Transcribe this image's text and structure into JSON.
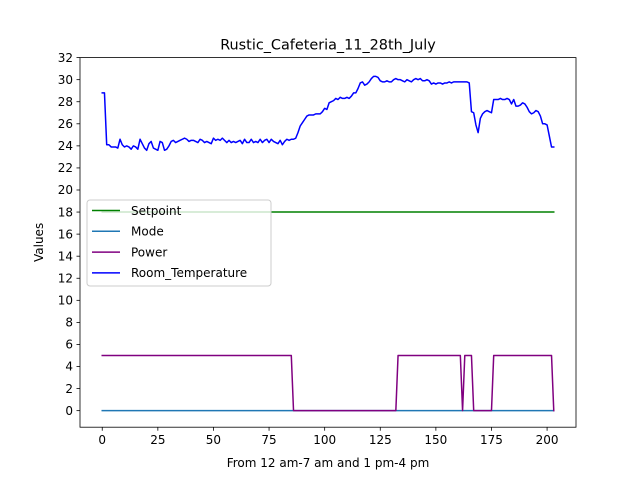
{
  "chart_data": {
    "type": "line",
    "title": "Rustic_Cafeteria_11_28th_July",
    "xlabel": "From 12 am-7 am and 1 pm-4 pm",
    "ylabel": "Values",
    "xlim": [
      -10,
      213
    ],
    "ylim": [
      -1.5,
      32
    ],
    "xticks": [
      0,
      25,
      50,
      75,
      100,
      125,
      150,
      175,
      200
    ],
    "yticks": [
      0,
      2,
      4,
      6,
      8,
      10,
      12,
      14,
      16,
      18,
      20,
      22,
      24,
      26,
      28,
      30,
      32
    ],
    "grid": false,
    "legend_position": "center-left",
    "series": [
      {
        "name": "Setpoint",
        "color": "#008000",
        "points": [
          [
            0,
            18
          ],
          [
            203,
            18
          ]
        ]
      },
      {
        "name": "Mode",
        "color": "#1f77b4",
        "points": [
          [
            0,
            0
          ],
          [
            203,
            0
          ]
        ]
      },
      {
        "name": "Power",
        "color": "#800080",
        "points": [
          [
            0,
            5
          ],
          [
            85,
            5
          ],
          [
            86,
            0
          ],
          [
            132,
            0
          ],
          [
            133,
            5
          ],
          [
            161,
            5
          ],
          [
            162,
            0
          ],
          [
            163,
            5
          ],
          [
            166,
            5
          ],
          [
            167,
            0
          ],
          [
            175,
            0
          ],
          [
            176,
            5
          ],
          [
            202,
            5
          ],
          [
            203,
            0
          ]
        ]
      },
      {
        "name": "Room_Temperature",
        "color": "#0000ff",
        "points": [
          [
            0,
            28.8
          ],
          [
            1,
            28.8
          ],
          [
            2,
            24.1
          ],
          [
            3,
            24.1
          ],
          [
            4,
            23.9
          ],
          [
            5,
            23.9
          ],
          [
            6,
            23.9
          ],
          [
            7,
            23.8
          ],
          [
            8,
            24.6
          ],
          [
            9,
            24.1
          ],
          [
            10,
            23.9
          ],
          [
            11,
            24.0
          ],
          [
            12,
            23.9
          ],
          [
            13,
            23.7
          ],
          [
            14,
            24.0
          ],
          [
            15,
            23.9
          ],
          [
            16,
            23.7
          ],
          [
            17,
            24.6
          ],
          [
            18,
            24.2
          ],
          [
            19,
            23.8
          ],
          [
            20,
            23.6
          ],
          [
            21,
            24.2
          ],
          [
            22,
            24.4
          ],
          [
            23,
            23.8
          ],
          [
            24,
            23.7
          ],
          [
            25,
            23.6
          ],
          [
            26,
            24.4
          ],
          [
            27,
            24.3
          ],
          [
            28,
            23.6
          ],
          [
            29,
            23.7
          ],
          [
            30,
            24.0
          ],
          [
            31,
            24.4
          ],
          [
            32,
            24.5
          ],
          [
            33,
            24.3
          ],
          [
            34,
            24.4
          ],
          [
            35,
            24.5
          ],
          [
            36,
            24.6
          ],
          [
            37,
            24.7
          ],
          [
            38,
            24.6
          ],
          [
            39,
            24.4
          ],
          [
            40,
            24.5
          ],
          [
            41,
            24.5
          ],
          [
            42,
            24.4
          ],
          [
            43,
            24.3
          ],
          [
            44,
            24.6
          ],
          [
            45,
            24.5
          ],
          [
            46,
            24.3
          ],
          [
            47,
            24.4
          ],
          [
            48,
            24.3
          ],
          [
            49,
            24.2
          ],
          [
            50,
            24.7
          ],
          [
            51,
            24.5
          ],
          [
            52,
            24.6
          ],
          [
            53,
            24.5
          ],
          [
            54,
            24.7
          ],
          [
            55,
            24.5
          ],
          [
            56,
            24.3
          ],
          [
            57,
            24.5
          ],
          [
            58,
            24.3
          ],
          [
            59,
            24.4
          ],
          [
            60,
            24.3
          ],
          [
            61,
            24.4
          ],
          [
            62,
            24.5
          ],
          [
            63,
            24.2
          ],
          [
            64,
            24.6
          ],
          [
            65,
            24.3
          ],
          [
            66,
            24.3
          ],
          [
            67,
            24.6
          ],
          [
            68,
            24.3
          ],
          [
            69,
            24.4
          ],
          [
            70,
            24.3
          ],
          [
            71,
            24.6
          ],
          [
            72,
            24.3
          ],
          [
            73,
            24.5
          ],
          [
            74,
            24.6
          ],
          [
            75,
            24.3
          ],
          [
            76,
            24.6
          ],
          [
            77,
            24.4
          ],
          [
            78,
            24.3
          ],
          [
            79,
            24.2
          ],
          [
            80,
            24.5
          ],
          [
            81,
            24.1
          ],
          [
            82,
            24.4
          ],
          [
            83,
            24.6
          ],
          [
            84,
            24.5
          ],
          [
            85,
            24.6
          ],
          [
            86,
            24.6
          ],
          [
            87,
            24.7
          ],
          [
            88,
            25.2
          ],
          [
            89,
            25.8
          ],
          [
            90,
            26.1
          ],
          [
            91,
            26.4
          ],
          [
            92,
            26.7
          ],
          [
            93,
            26.8
          ],
          [
            94,
            26.8
          ],
          [
            95,
            26.8
          ],
          [
            96,
            26.9
          ],
          [
            97,
            26.9
          ],
          [
            98,
            26.9
          ],
          [
            99,
            27.1
          ],
          [
            100,
            27.4
          ],
          [
            101,
            27.3
          ],
          [
            102,
            27.9
          ],
          [
            103,
            28.0
          ],
          [
            104,
            28.1
          ],
          [
            105,
            28.3
          ],
          [
            106,
            28.2
          ],
          [
            107,
            28.4
          ],
          [
            108,
            28.3
          ],
          [
            109,
            28.3
          ],
          [
            110,
            28.4
          ],
          [
            111,
            28.3
          ],
          [
            112,
            28.5
          ],
          [
            113,
            28.8
          ],
          [
            114,
            28.8
          ],
          [
            115,
            29.2
          ],
          [
            116,
            29.7
          ],
          [
            117,
            29.8
          ],
          [
            118,
            29.5
          ],
          [
            119,
            29.6
          ],
          [
            120,
            29.8
          ],
          [
            121,
            30.1
          ],
          [
            122,
            30.3
          ],
          [
            123,
            30.3
          ],
          [
            124,
            30.2
          ],
          [
            125,
            29.9
          ],
          [
            126,
            29.8
          ],
          [
            127,
            29.8
          ],
          [
            128,
            29.9
          ],
          [
            129,
            29.8
          ],
          [
            130,
            29.8
          ],
          [
            131,
            30.0
          ],
          [
            132,
            30.1
          ],
          [
            133,
            30.0
          ],
          [
            134,
            30.0
          ],
          [
            135,
            29.9
          ],
          [
            136,
            29.8
          ],
          [
            137,
            30.0
          ],
          [
            138,
            29.9
          ],
          [
            139,
            29.8
          ],
          [
            140,
            30.0
          ],
          [
            141,
            30.1
          ],
          [
            142,
            30.0
          ],
          [
            143,
            30.1
          ],
          [
            144,
            29.9
          ],
          [
            145,
            29.9
          ],
          [
            146,
            30.0
          ],
          [
            147,
            29.9
          ],
          [
            148,
            29.6
          ],
          [
            149,
            29.7
          ],
          [
            150,
            29.6
          ],
          [
            151,
            29.7
          ],
          [
            152,
            29.7
          ],
          [
            153,
            29.6
          ],
          [
            154,
            29.7
          ],
          [
            155,
            29.7
          ],
          [
            156,
            29.8
          ],
          [
            157,
            29.7
          ],
          [
            158,
            29.8
          ],
          [
            159,
            29.8
          ],
          [
            160,
            29.8
          ],
          [
            161,
            29.8
          ],
          [
            162,
            29.8
          ],
          [
            163,
            29.8
          ],
          [
            164,
            29.8
          ],
          [
            165,
            29.7
          ],
          [
            166,
            27.1
          ],
          [
            167,
            27.0
          ],
          [
            168,
            25.9
          ],
          [
            169,
            25.2
          ],
          [
            170,
            26.5
          ],
          [
            171,
            26.9
          ],
          [
            172,
            27.1
          ],
          [
            173,
            27.2
          ],
          [
            174,
            27.1
          ],
          [
            175,
            27.0
          ],
          [
            176,
            28.2
          ],
          [
            177,
            28.2
          ],
          [
            178,
            28.2
          ],
          [
            179,
            28.3
          ],
          [
            180,
            28.2
          ],
          [
            181,
            28.2
          ],
          [
            182,
            28.3
          ],
          [
            183,
            28.2
          ],
          [
            184,
            27.8
          ],
          [
            185,
            28.2
          ],
          [
            186,
            27.6
          ],
          [
            187,
            27.6
          ],
          [
            188,
            27.7
          ],
          [
            189,
            27.9
          ],
          [
            190,
            27.8
          ],
          [
            191,
            27.5
          ],
          [
            192,
            27.1
          ],
          [
            193,
            26.9
          ],
          [
            194,
            27.0
          ],
          [
            195,
            27.2
          ],
          [
            196,
            27.1
          ],
          [
            197,
            26.7
          ],
          [
            198,
            26.0
          ],
          [
            199,
            26.0
          ],
          [
            200,
            25.9
          ],
          [
            201,
            24.9
          ],
          [
            202,
            23.9
          ],
          [
            203,
            23.9
          ]
        ]
      }
    ]
  }
}
